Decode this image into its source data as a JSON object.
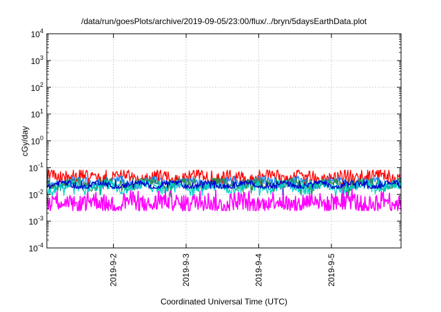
{
  "chart_data": {
    "type": "line",
    "title": "/data/run/goesPlots/archive/2019-09-05/23:00/flux/../bryn/5daysEarthData.plot",
    "xlabel": "Coordinated Universal Time (UTC)",
    "ylabel": "cGy/day",
    "y_scale": "log",
    "ylim": [
      0.0001,
      10000
    ],
    "xlim": [
      "2019-09-01T02:00",
      "2019-09-05T23:00"
    ],
    "grid": true,
    "legend": "none",
    "y_ticks": [
      {
        "base": "10",
        "exp": "-4"
      },
      {
        "base": "10",
        "exp": "-3"
      },
      {
        "base": "10",
        "exp": "-2"
      },
      {
        "base": "10",
        "exp": "-1"
      },
      {
        "base": "10",
        "exp": "0"
      },
      {
        "base": "10",
        "exp": "1"
      },
      {
        "base": "10",
        "exp": "2"
      },
      {
        "base": "10",
        "exp": "3"
      },
      {
        "base": "10",
        "exp": "4"
      }
    ],
    "x_ticks": [
      {
        "label": "2019-9-2",
        "date": "2019-09-02T00:00"
      },
      {
        "label": "2019-9-3",
        "date": "2019-09-03T00:00"
      },
      {
        "label": "2019-9-4",
        "date": "2019-09-04T00:00"
      },
      {
        "label": "2019-9-5",
        "date": "2019-09-05T00:00"
      }
    ],
    "series": [
      {
        "color": "#ff0000",
        "base": 0.045,
        "spread": 0.5,
        "low": 0.024,
        "high": 0.08
      },
      {
        "color": "#1e90ff",
        "base": 0.028,
        "spread": 0.35,
        "low": 0.016,
        "high": 0.048
      },
      {
        "color": "#2e8b57",
        "base": 0.025,
        "spread": 0.4,
        "low": 0.006,
        "high": 0.04
      },
      {
        "color": "#00d2c8",
        "base": 0.02,
        "spread": 0.4,
        "low": 0.009,
        "high": 0.033
      },
      {
        "color": "#0000cd",
        "base": 0.023,
        "spread": 0.25,
        "low": 0.017,
        "high": 0.032
      },
      {
        "color": "#ff00ff",
        "base": 0.005,
        "spread": 0.8,
        "low": 0.0025,
        "high": 0.02
      }
    ]
  }
}
